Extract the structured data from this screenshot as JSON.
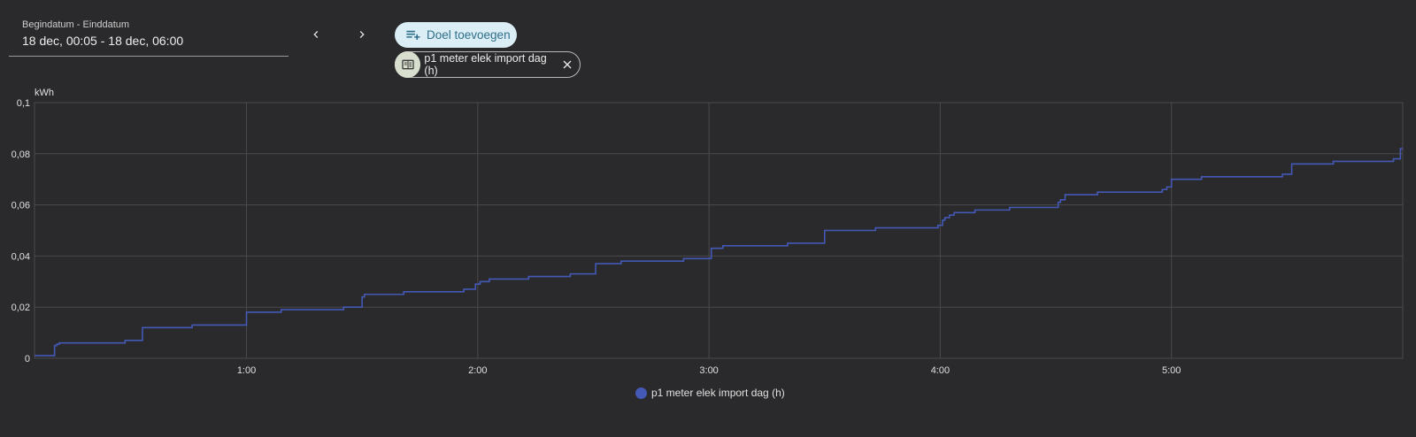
{
  "date_range": {
    "label": "Begindatum - Einddatum",
    "value": "18 dec, 00:05 - 18 dec, 06:00"
  },
  "nav": {
    "prev_icon": "chevron-left-icon",
    "next_icon": "chevron-right-icon"
  },
  "add_target": {
    "label": "Doel toevoegen",
    "icon": "playlist-plus-icon"
  },
  "chip": {
    "label": "p1 meter elek import dag (h)",
    "icon": "energy-meter-icon",
    "close_icon": "close-icon"
  },
  "colors": {
    "background": "#2a2a2c",
    "series": "#4458b5",
    "grid": "#4a4a4d",
    "chip_bg": "#dbeef5"
  },
  "chart_data": {
    "type": "line",
    "title": "",
    "ylabel": "kWh",
    "xlabel": "",
    "xlim": [
      0.0833,
      6.0
    ],
    "ylim": [
      0,
      0.1
    ],
    "x_ticks": [
      {
        "x": 1,
        "label": "1:00"
      },
      {
        "x": 2,
        "label": "2:00"
      },
      {
        "x": 3,
        "label": "3:00"
      },
      {
        "x": 4,
        "label": "4:00"
      },
      {
        "x": 5,
        "label": "5:00"
      }
    ],
    "y_ticks": [
      {
        "y": 0,
        "label": "0"
      },
      {
        "y": 0.02,
        "label": "0,02"
      },
      {
        "y": 0.04,
        "label": "0,04"
      },
      {
        "y": 0.06,
        "label": "0,06"
      },
      {
        "y": 0.08,
        "label": "0,08"
      },
      {
        "y": 0.1,
        "label": "0,1"
      }
    ],
    "grid": true,
    "legend_position": "bottom-center",
    "series": [
      {
        "name": "p1 meter elek import dag (h)",
        "step": true,
        "color": "#4458b5",
        "x": [
          0.0833,
          0.17,
          0.18,
          0.19,
          0.475,
          0.55,
          0.765,
          1.0,
          1.15,
          1.42,
          1.5,
          1.51,
          1.68,
          1.94,
          1.99,
          2.01,
          2.05,
          2.22,
          2.4,
          2.51,
          2.62,
          2.89,
          3.01,
          3.06,
          3.34,
          3.5,
          3.72,
          3.99,
          4.01,
          4.02,
          4.04,
          4.06,
          4.15,
          4.3,
          4.51,
          4.52,
          4.54,
          4.68,
          4.96,
          4.98,
          5.0,
          5.13,
          5.48,
          5.52,
          5.7,
          5.96,
          5.99,
          6.0
        ],
        "y": [
          0.001,
          0.005,
          0.0055,
          0.006,
          0.007,
          0.012,
          0.013,
          0.018,
          0.019,
          0.02,
          0.024,
          0.025,
          0.026,
          0.027,
          0.029,
          0.03,
          0.031,
          0.032,
          0.033,
          0.037,
          0.038,
          0.039,
          0.043,
          0.044,
          0.045,
          0.05,
          0.051,
          0.052,
          0.054,
          0.055,
          0.056,
          0.057,
          0.058,
          0.059,
          0.061,
          0.062,
          0.064,
          0.065,
          0.066,
          0.067,
          0.07,
          0.071,
          0.072,
          0.076,
          0.077,
          0.078,
          0.082,
          0.082
        ]
      }
    ]
  }
}
